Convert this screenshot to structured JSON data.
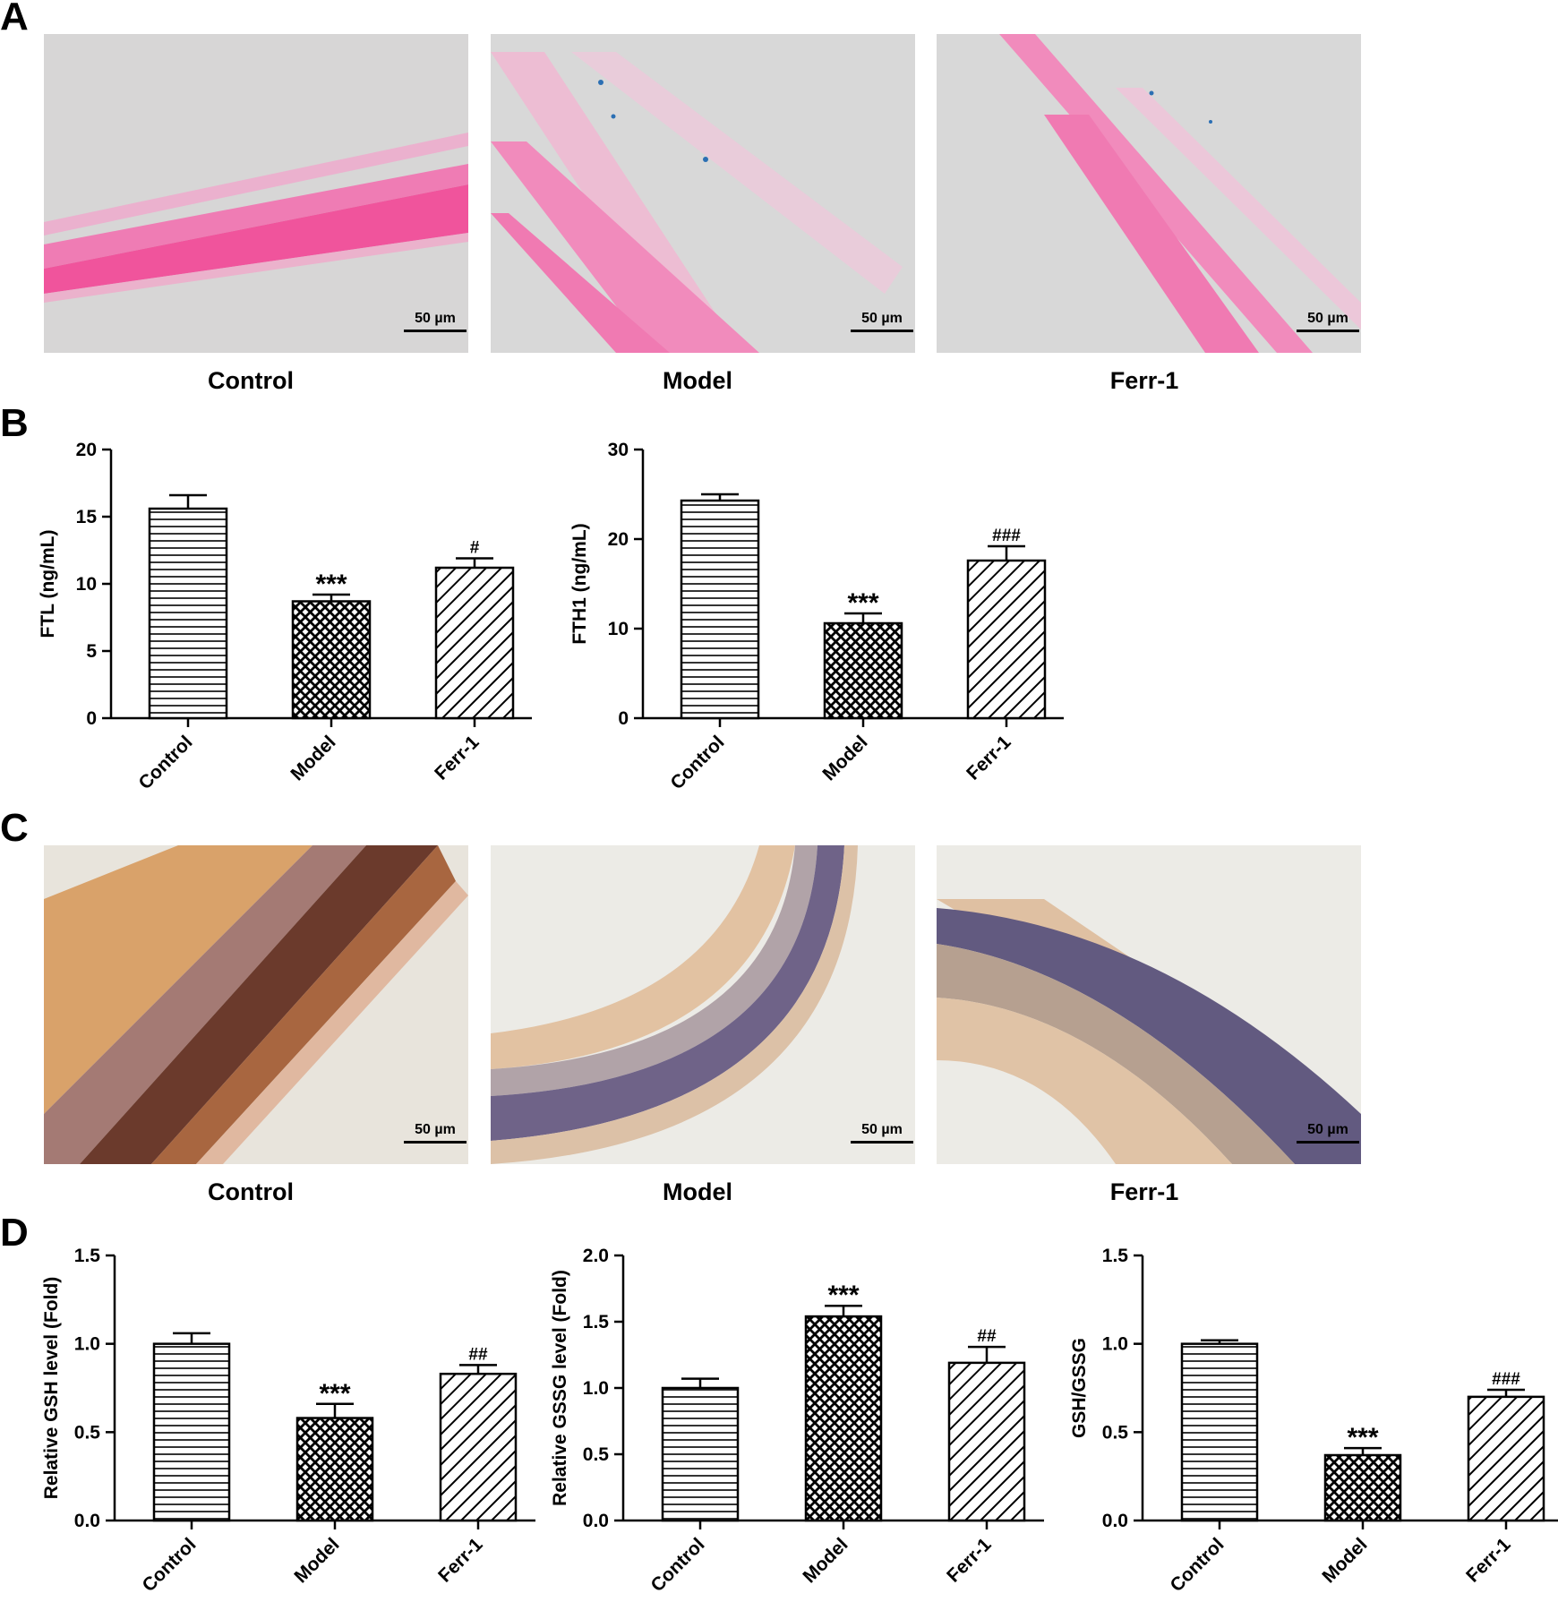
{
  "panels": {
    "a": {
      "letter": "A",
      "scale_label": "50 µm",
      "captions": [
        "Control",
        "Model",
        "Ferr-1"
      ]
    },
    "b": {
      "letter": "B"
    },
    "c": {
      "letter": "C",
      "scale_label": "50 µm",
      "captions": [
        "Control",
        "Model",
        "Ferr-1"
      ]
    },
    "d": {
      "letter": "D"
    }
  },
  "colors": {
    "he_pink": "#f0549c",
    "stain_brown": "#7a3a20",
    "hematoxylin_purple": "#5c4e80",
    "bar_stroke": "#000000"
  },
  "chart_data": [
    {
      "type": "bar",
      "panel": "B",
      "categories": [
        "Control",
        "Model",
        "Ferr-1"
      ],
      "ylabel": "FTL (ng/mL)",
      "xlabel": "",
      "values": [
        15.6,
        8.7,
        11.2
      ],
      "errors": [
        1.0,
        0.5,
        0.7
      ],
      "ylim": [
        0,
        20
      ],
      "yticks": [
        "0",
        "5",
        "10",
        "15",
        "20"
      ],
      "annotations": [
        "",
        "***",
        "#"
      ],
      "patterns": [
        "horizontal",
        "crosshatch",
        "diagonal"
      ]
    },
    {
      "type": "bar",
      "panel": "B",
      "categories": [
        "Control",
        "Model",
        "Ferr-1"
      ],
      "ylabel": "FTH1 (ng/mL)",
      "xlabel": "",
      "values": [
        24.3,
        10.6,
        17.6
      ],
      "errors": [
        0.7,
        1.1,
        1.6
      ],
      "ylim": [
        0,
        30
      ],
      "yticks": [
        "0",
        "10",
        "20",
        "30"
      ],
      "annotations": [
        "",
        "***",
        "###"
      ],
      "patterns": [
        "horizontal",
        "crosshatch",
        "diagonal"
      ]
    },
    {
      "type": "bar",
      "panel": "D",
      "categories": [
        "Control",
        "Model",
        "Ferr-1"
      ],
      "ylabel": "Relative GSH level (Fold)",
      "xlabel": "",
      "values": [
        1.0,
        0.58,
        0.83
      ],
      "errors": [
        0.06,
        0.08,
        0.05
      ],
      "ylim": [
        0,
        1.5
      ],
      "yticks": [
        "0.0",
        "0.5",
        "1.0",
        "1.5"
      ],
      "annotations": [
        "",
        "***",
        "##"
      ],
      "patterns": [
        "horizontal",
        "crosshatch",
        "diagonal"
      ]
    },
    {
      "type": "bar",
      "panel": "D",
      "categories": [
        "Control",
        "Model",
        "Ferr-1"
      ],
      "ylabel": "Relative GSSG level (Fold)",
      "xlabel": "",
      "values": [
        1.0,
        1.54,
        1.19
      ],
      "errors": [
        0.07,
        0.08,
        0.12
      ],
      "ylim": [
        0,
        2.0
      ],
      "yticks": [
        "0.0",
        "0.5",
        "1.0",
        "1.5",
        "2.0"
      ],
      "annotations": [
        "",
        "***",
        "##"
      ],
      "patterns": [
        "horizontal",
        "crosshatch",
        "diagonal"
      ]
    },
    {
      "type": "bar",
      "panel": "D",
      "categories": [
        "Control",
        "Model",
        "Ferr-1"
      ],
      "ylabel": "GSH/GSSG",
      "xlabel": "",
      "values": [
        1.0,
        0.37,
        0.7
      ],
      "errors": [
        0.02,
        0.04,
        0.04
      ],
      "ylim": [
        0,
        1.5
      ],
      "yticks": [
        "0.0",
        "0.5",
        "1.0",
        "1.5"
      ],
      "annotations": [
        "",
        "***",
        "###"
      ],
      "patterns": [
        "horizontal",
        "crosshatch",
        "diagonal"
      ]
    }
  ]
}
